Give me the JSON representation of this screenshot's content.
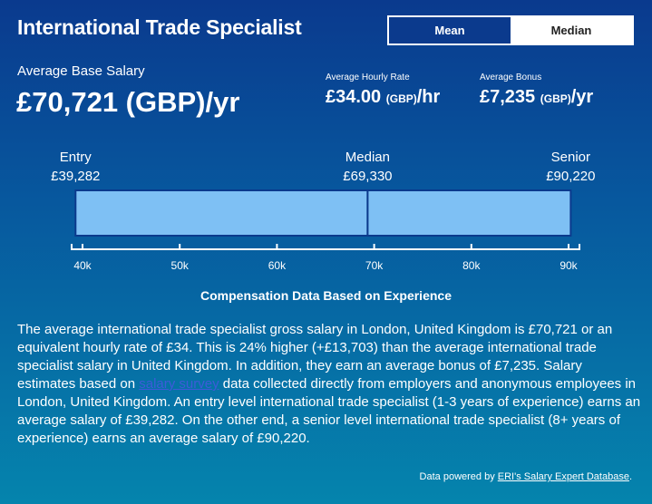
{
  "title": "International Trade Specialist",
  "toggle": {
    "mean_label": "Mean",
    "median_label": "Median",
    "selected": "Mean"
  },
  "base_salary": {
    "label": "Average Base Salary",
    "value": "£70,721 (GBP)/yr"
  },
  "hourly": {
    "label": "Average Hourly Rate",
    "amount": "£34.00",
    "currency": "(GBP)",
    "suffix": "/hr"
  },
  "bonus": {
    "label": "Average Bonus",
    "amount": "£7,235",
    "currency": "(GBP)",
    "suffix": "/yr"
  },
  "chart_data": {
    "type": "bar",
    "title": "Compensation Data Based on Experience",
    "markers": [
      {
        "name": "Entry",
        "label": "£39,282",
        "value": 39282
      },
      {
        "name": "Median",
        "label": "£69,330",
        "value": 69330
      },
      {
        "name": "Senior",
        "label": "£90,220",
        "value": 90220
      }
    ],
    "range": [
      39282,
      90220
    ],
    "xlim": [
      40000,
      90000
    ],
    "ticks": [
      {
        "value": 40000,
        "label": "40k"
      },
      {
        "value": 50000,
        "label": "50k"
      },
      {
        "value": 60000,
        "label": "60k"
      },
      {
        "value": 70000,
        "label": "70k"
      },
      {
        "value": 80000,
        "label": "80k"
      },
      {
        "value": 90000,
        "label": "90k"
      }
    ],
    "colors": {
      "bar": "#7ec0f4",
      "border": "#0b3a8d",
      "axis": "#ffffff"
    }
  },
  "description": {
    "part1": "The average international trade specialist gross salary in London, United Kingdom is £70,721 or an equivalent hourly rate of £34. This is 24% higher (+£13,703) than the average international trade specialist salary in United Kingdom. In addition, they earn an average bonus of £7,235. Salary estimates based on ",
    "link": "salary survey",
    "part2": " data collected directly from employers and anonymous employees in London, United Kingdom. An entry level international trade specialist (1-3 years of experience) earns an average salary of £39,282. On the other end, a senior level international trade specialist (8+ years of experience) earns an average salary of £90,220."
  },
  "footer": {
    "prefix": "Data powered by ",
    "link": "ERI's Salary Expert Database",
    "suffix": "."
  }
}
